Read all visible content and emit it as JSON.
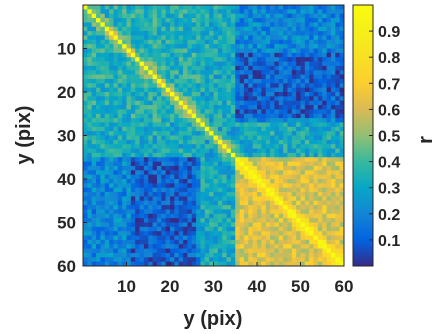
{
  "chart_data": {
    "type": "heatmap",
    "title": "",
    "xlabel": "y (pix)",
    "ylabel": "y (pix)",
    "colorbar_label": "r",
    "xlim": [
      0,
      60
    ],
    "ylim": [
      0,
      60
    ],
    "x_ticks": [
      10,
      20,
      30,
      40,
      50,
      60
    ],
    "y_ticks": [
      10,
      20,
      30,
      40,
      50,
      60
    ],
    "colorbar_ticks": [
      0.1,
      0.2,
      0.3,
      0.4,
      0.5,
      0.6,
      0.7,
      0.8,
      0.9
    ],
    "clim": [
      0.0,
      1.0
    ],
    "colormap": "parula",
    "grid": false,
    "diagonal_value": 1.0,
    "block_structure": {
      "description": "Correlation matrix of 60x60 pixels; high off-diagonal correlations in the lower-right block",
      "blocks": [
        {
          "rows": [
            1,
            27
          ],
          "cols": [
            1,
            27
          ],
          "mean_r": 0.35
        },
        {
          "rows": [
            28,
            35
          ],
          "cols": [
            28,
            35
          ],
          "mean_r": 0.3
        },
        {
          "rows": [
            36,
            60
          ],
          "cols": [
            36,
            60
          ],
          "mean_r": 0.62
        },
        {
          "rows": [
            1,
            27
          ],
          "cols": [
            36,
            60
          ],
          "mean_r": 0.2
        },
        {
          "rows": [
            12,
            26
          ],
          "cols": [
            36,
            60
          ],
          "mean_r": 0.1
        }
      ]
    }
  }
}
